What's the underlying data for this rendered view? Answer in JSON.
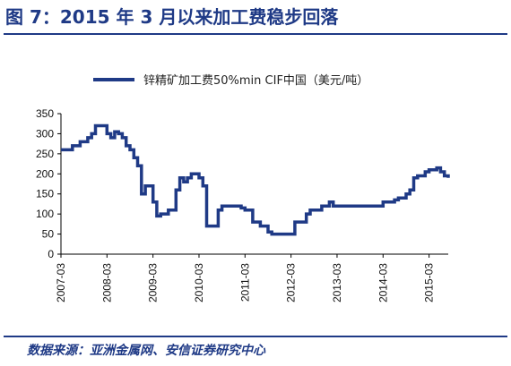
{
  "figure": {
    "title": "图 7：2015 年 3 月以来加工费稳步回落",
    "source": "数据来源：亚洲金属网、安信证券研究中心"
  },
  "colors": {
    "accent": "#1f3a86",
    "line": "#1f3a86",
    "axis": "#000000"
  },
  "chart_data": {
    "type": "line",
    "title": "",
    "xlabel": "",
    "ylabel": "",
    "ylim": [
      0,
      350
    ],
    "yticks": [
      0,
      50,
      100,
      150,
      200,
      250,
      300,
      350
    ],
    "xlim": [
      "2007-03",
      "2015-08"
    ],
    "xticks": [
      "2007-03",
      "2008-03",
      "2009-03",
      "2010-03",
      "2011-03",
      "2012-03",
      "2013-03",
      "2014-03",
      "2015-03"
    ],
    "grid": false,
    "legend_position": "top",
    "series": [
      {
        "name": "锌精矿加工费50%min CIF中国（美元/吨）",
        "step": true,
        "points": [
          [
            "2007-03",
            260
          ],
          [
            "2007-06",
            270
          ],
          [
            "2007-08",
            280
          ],
          [
            "2007-10",
            290
          ],
          [
            "2007-11",
            300
          ],
          [
            "2007-12",
            320
          ],
          [
            "2008-01",
            320
          ],
          [
            "2008-03",
            300
          ],
          [
            "2008-04",
            290
          ],
          [
            "2008-05",
            305
          ],
          [
            "2008-06",
            300
          ],
          [
            "2008-07",
            290
          ],
          [
            "2008-08",
            270
          ],
          [
            "2008-09",
            260
          ],
          [
            "2008-10",
            240
          ],
          [
            "2008-11",
            220
          ],
          [
            "2008-12",
            150
          ],
          [
            "2009-01",
            170
          ],
          [
            "2009-03",
            130
          ],
          [
            "2009-04",
            95
          ],
          [
            "2009-05",
            100
          ],
          [
            "2009-07",
            110
          ],
          [
            "2009-09",
            160
          ],
          [
            "2009-10",
            190
          ],
          [
            "2009-11",
            180
          ],
          [
            "2009-12",
            190
          ],
          [
            "2010-01",
            200
          ],
          [
            "2010-03",
            190
          ],
          [
            "2010-04",
            170
          ],
          [
            "2010-05",
            70
          ],
          [
            "2010-08",
            110
          ],
          [
            "2010-09",
            120
          ],
          [
            "2011-02",
            115
          ],
          [
            "2011-03",
            110
          ],
          [
            "2011-05",
            80
          ],
          [
            "2011-07",
            70
          ],
          [
            "2011-09",
            55
          ],
          [
            "2011-10",
            50
          ],
          [
            "2012-04",
            80
          ],
          [
            "2012-07",
            100
          ],
          [
            "2012-08",
            110
          ],
          [
            "2012-11",
            120
          ],
          [
            "2013-01",
            130
          ],
          [
            "2013-02",
            120
          ],
          [
            "2014-03",
            130
          ],
          [
            "2014-06",
            135
          ],
          [
            "2014-07",
            140
          ],
          [
            "2014-09",
            150
          ],
          [
            "2014-10",
            160
          ],
          [
            "2014-11",
            190
          ],
          [
            "2014-12",
            195
          ],
          [
            "2015-02",
            205
          ],
          [
            "2015-03",
            210
          ],
          [
            "2015-05",
            215
          ],
          [
            "2015-06",
            205
          ],
          [
            "2015-07",
            195
          ],
          [
            "2015-08",
            190
          ]
        ]
      }
    ]
  }
}
